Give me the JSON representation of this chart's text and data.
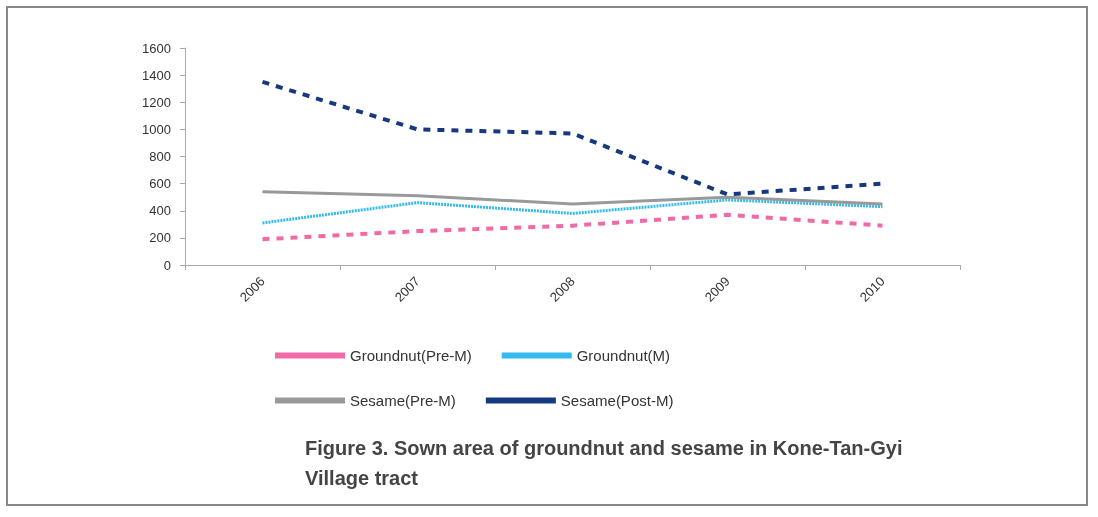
{
  "chart_data": {
    "type": "line",
    "title": "Figure 3. Sown area of groundnut and sesame in Kone-Tan-Gyi\nVillage tract",
    "categories": [
      "2006",
      "2007",
      "2008",
      "2009",
      "2010"
    ],
    "series": [
      {
        "name": "Groundnut(Pre-M)",
        "color": "#f06aa8",
        "line_style": "dashed",
        "values": [
          190,
          250,
          290,
          370,
          290
        ]
      },
      {
        "name": "Groundnut(M)",
        "color": "#33bbee",
        "line_style": "dotted",
        "values": [
          310,
          460,
          380,
          480,
          430
        ]
      },
      {
        "name": "Sesame(Pre-M)",
        "color": "#999999",
        "line_style": "solid",
        "values": [
          540,
          510,
          450,
          500,
          450
        ]
      },
      {
        "name": "Sesame(Post-M)",
        "color": "#15387f",
        "line_style": "dashed",
        "values": [
          1350,
          1000,
          970,
          520,
          600
        ]
      }
    ],
    "ylim": [
      0,
      1600
    ],
    "yticks": [
      0,
      200,
      400,
      600,
      800,
      1000,
      1200,
      1400,
      1600
    ],
    "grid": false,
    "legend": "bottom",
    "marker": "none"
  }
}
